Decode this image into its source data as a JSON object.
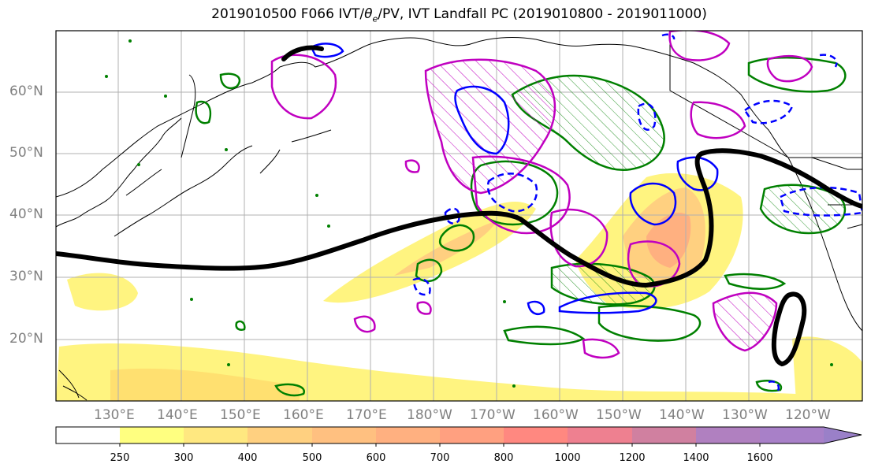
{
  "title": "2019010500 F066 IVT/θe/PV, IVT Landfall PC (2019010800 - 2019011000)",
  "title_parts": {
    "prefix": "2019010500 F066 IVT/",
    "theta": "θ",
    "sub": "e",
    "suffix": "/PV, IVT Landfall PC (2019010800 - 2019011000)"
  },
  "lat_labels": [
    "60°N",
    "50°N",
    "40°N",
    "30°N",
    "20°N"
  ],
  "lon_labels": [
    "130°E",
    "140°E",
    "150°E",
    "160°E",
    "170°E",
    "180°W",
    "170°W",
    "160°W",
    "150°W",
    "140°W",
    "130°W",
    "120°W"
  ],
  "colorbar": {
    "ticks": [
      "250",
      "300",
      "400",
      "500",
      "600",
      "700",
      "800",
      "1000",
      "1200",
      "1400",
      "1600"
    ],
    "colors": [
      "#ffffff",
      "#ffff80",
      "#ffe880",
      "#ffd080",
      "#ffc080",
      "#ffb080",
      "#ffa080",
      "#ff8880",
      "#ee8090",
      "#d080a0",
      "#b080c0",
      "#9a80c8"
    ]
  },
  "colors": {
    "ivt_fill": "#fff080",
    "contour_green": "#008000",
    "contour_magenta": "#c000c0",
    "contour_blue": "#0000ff",
    "contour_black": "#000000",
    "gridline": "#b0b0b0"
  }
}
